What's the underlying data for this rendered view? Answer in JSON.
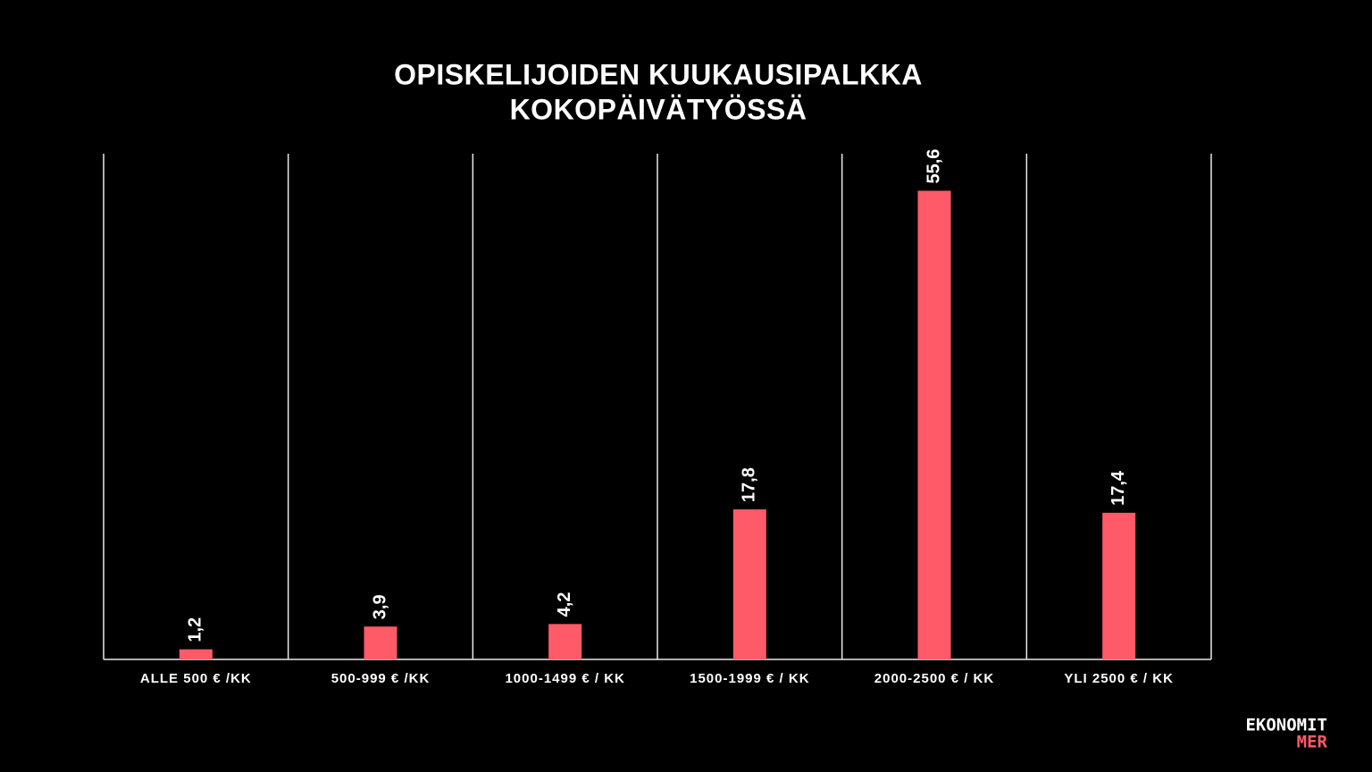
{
  "chart_data": {
    "type": "bar",
    "title": [
      "OPISKELIJOIDEN KUUKAUSIPALKKA",
      "KOKOPÄIVÄTYÖSSÄ"
    ],
    "categories": [
      "ALLE 500 € /KK",
      "500-999 € /KK",
      "1000-1499 € / KK",
      "1500-1999 € / KK",
      "2000-2500 € / KK",
      "YLI 2500 € / KK"
    ],
    "values": [
      1.2,
      3.9,
      4.2,
      17.8,
      55.6,
      17.4
    ],
    "value_labels": [
      "1,2",
      "3,9",
      "4,2",
      "17,8",
      "55,6",
      "17,4"
    ],
    "color": "#ff5a68",
    "ylim": [
      0,
      60
    ]
  },
  "logo": {
    "line1": "EKONOMIT",
    "line2": "MER"
  }
}
